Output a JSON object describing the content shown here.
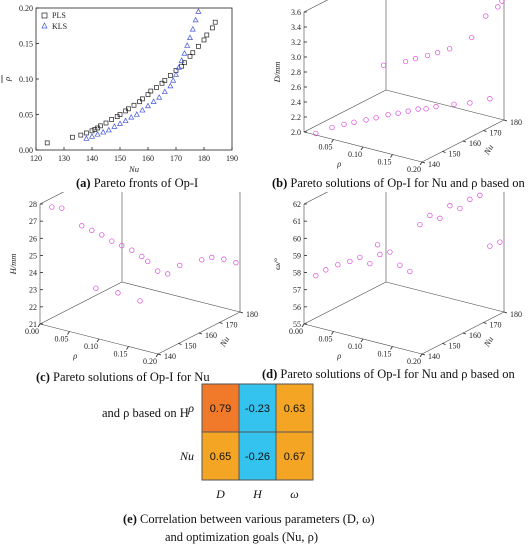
{
  "captions": {
    "a": {
      "tag": "(a)",
      "text": " Pareto fronts of Op-I"
    },
    "b": {
      "tag": "(b)",
      "text": " Pareto solutions of Op-I for Nu and ρ based on"
    },
    "c": {
      "tag": "(c)",
      "text": " Pareto solutions of Op-I for Nu"
    },
    "c2": "and ρ based on H",
    "d": {
      "tag": "(d)",
      "text": " Pareto solutions of Op-I for Nu and ρ based on"
    },
    "e": {
      "tag": "(e)",
      "text": " Correlation between various parameters (D, ω)"
    },
    "e2": "and optimization goals (Nu, ρ)"
  },
  "chart_data": [
    {
      "id": "a",
      "type": "scatter",
      "xlabel": "Nu",
      "ylabel": "ρ",
      "xlim": [
        120,
        190
      ],
      "ylim": [
        0,
        0.2
      ],
      "xticks": [
        "120",
        "130",
        "140",
        "150",
        "160",
        "170",
        "180",
        "190"
      ],
      "yticks": [
        "0.00",
        "0.05",
        "0.10",
        "0.15",
        "0.20"
      ],
      "legend": {
        "position": "top-left",
        "entries": [
          "PLS",
          "KLS"
        ]
      },
      "series": [
        {
          "name": "PLS",
          "color": "#222222",
          "marker": "square",
          "x": [
            124,
            133,
            136,
            138,
            140,
            141,
            142,
            143,
            145,
            147,
            149,
            150,
            152,
            153,
            155,
            157,
            158,
            160,
            161,
            163,
            165,
            166,
            168,
            170,
            172,
            173,
            175,
            176,
            178,
            180,
            181,
            183,
            184
          ],
          "y": [
            0.01,
            0.018,
            0.021,
            0.024,
            0.027,
            0.029,
            0.031,
            0.034,
            0.038,
            0.043,
            0.047,
            0.05,
            0.055,
            0.058,
            0.063,
            0.068,
            0.072,
            0.078,
            0.083,
            0.088,
            0.094,
            0.098,
            0.105,
            0.112,
            0.118,
            0.123,
            0.132,
            0.137,
            0.146,
            0.155,
            0.162,
            0.172,
            0.18
          ]
        },
        {
          "name": "KLS",
          "color": "#4455dd",
          "marker": "triangle",
          "x": [
            138,
            140,
            142,
            144,
            146,
            148,
            150,
            152,
            154,
            156,
            158,
            160,
            162,
            164,
            166,
            168,
            169,
            170,
            171,
            172,
            173,
            174,
            175,
            176,
            177,
            178
          ],
          "y": [
            0.016,
            0.019,
            0.022,
            0.025,
            0.028,
            0.033,
            0.037,
            0.041,
            0.046,
            0.05,
            0.056,
            0.062,
            0.068,
            0.074,
            0.082,
            0.09,
            0.098,
            0.106,
            0.116,
            0.126,
            0.136,
            0.147,
            0.158,
            0.17,
            0.183,
            0.195
          ]
        }
      ]
    },
    {
      "id": "b",
      "type": "scatter",
      "projection": "3d",
      "zlabel": "D/mm",
      "xlabel": "ρ",
      "ylabel": "Nu",
      "zlim": [
        2.0,
        3.6
      ],
      "xlim": [
        0,
        0.2
      ],
      "ylim": [
        140,
        180
      ],
      "zticks": [
        "2.0",
        "2.2",
        "2.4",
        "2.6",
        "2.8",
        "3.0",
        "3.2",
        "3.4",
        "3.6"
      ],
      "xticks": [
        "0.05",
        "0.10",
        "0.15",
        "0.20"
      ],
      "yticks": [
        "140",
        "150",
        "160",
        "170",
        "180"
      ],
      "color": "#dd44dd",
      "points": [
        {
          "rho": 0.02,
          "nu": 140,
          "z": 2.02
        },
        {
          "rho": 0.03,
          "nu": 145,
          "z": 2.05
        },
        {
          "rho": 0.04,
          "nu": 148,
          "z": 2.07
        },
        {
          "rho": 0.05,
          "nu": 150,
          "z": 2.09
        },
        {
          "rho": 0.06,
          "nu": 153,
          "z": 2.1
        },
        {
          "rho": 0.07,
          "nu": 155,
          "z": 2.12
        },
        {
          "rho": 0.08,
          "nu": 158,
          "z": 2.14
        },
        {
          "rho": 0.09,
          "nu": 160,
          "z": 2.15
        },
        {
          "rho": 0.1,
          "nu": 162,
          "z": 2.17
        },
        {
          "rho": 0.11,
          "nu": 164,
          "z": 2.19
        },
        {
          "rho": 0.12,
          "nu": 165,
          "z": 2.2
        },
        {
          "rho": 0.13,
          "nu": 167,
          "z": 2.22
        },
        {
          "rho": 0.15,
          "nu": 170,
          "z": 2.25
        },
        {
          "rho": 0.17,
          "nu": 172,
          "z": 2.28
        },
        {
          "rho": 0.19,
          "nu": 176,
          "z": 2.32
        },
        {
          "rho": 0.1,
          "nu": 150,
          "z": 2.95
        },
        {
          "rho": 0.12,
          "nu": 155,
          "z": 2.97
        },
        {
          "rho": 0.13,
          "nu": 157,
          "z": 3.0
        },
        {
          "rho": 0.14,
          "nu": 160,
          "z": 3.02
        },
        {
          "rho": 0.15,
          "nu": 162,
          "z": 3.05
        },
        {
          "rho": 0.16,
          "nu": 165,
          "z": 3.08
        },
        {
          "rho": 0.18,
          "nu": 170,
          "z": 3.2
        },
        {
          "rho": 0.19,
          "nu": 174,
          "z": 3.45
        },
        {
          "rho": 0.2,
          "nu": 177,
          "z": 3.55
        },
        {
          "rho": 0.2,
          "nu": 179,
          "z": 3.6
        }
      ]
    },
    {
      "id": "c",
      "type": "scatter",
      "projection": "3d",
      "zlabel": "H/mm",
      "xlabel": "ρ",
      "ylabel": "Nu",
      "zlim": [
        21,
        28
      ],
      "xlim": [
        0,
        0.2
      ],
      "ylim": [
        140,
        180
      ],
      "zticks": [
        "21",
        "22",
        "23",
        "24",
        "25",
        "26",
        "27",
        "28"
      ],
      "xticks": [
        "0.00",
        "0.05",
        "0.10",
        "0.15",
        "0.20"
      ],
      "yticks": [
        "140",
        "150",
        "160",
        "170",
        "180"
      ],
      "color": "#dd44dd",
      "points": [
        {
          "rho": 0.02,
          "nu": 140,
          "z": 28.0
        },
        {
          "rho": 0.03,
          "nu": 142,
          "z": 27.9
        },
        {
          "rho": 0.05,
          "nu": 146,
          "z": 26.8
        },
        {
          "rho": 0.06,
          "nu": 148,
          "z": 26.5
        },
        {
          "rho": 0.07,
          "nu": 150,
          "z": 26.2
        },
        {
          "rho": 0.08,
          "nu": 152,
          "z": 25.8
        },
        {
          "rho": 0.09,
          "nu": 154,
          "z": 25.5
        },
        {
          "rho": 0.1,
          "nu": 156,
          "z": 25.2
        },
        {
          "rho": 0.11,
          "nu": 158,
          "z": 24.8
        },
        {
          "rho": 0.13,
          "nu": 160,
          "z": 24.0
        },
        {
          "rho": 0.15,
          "nu": 165,
          "z": 24.2
        },
        {
          "rho": 0.17,
          "nu": 170,
          "z": 24.4
        },
        {
          "rho": 0.18,
          "nu": 172,
          "z": 24.5
        },
        {
          "rho": 0.19,
          "nu": 175,
          "z": 24.3
        },
        {
          "rho": 0.2,
          "nu": 178,
          "z": 24.0
        },
        {
          "rho": 0.06,
          "nu": 150,
          "z": 23.0
        },
        {
          "rho": 0.08,
          "nu": 155,
          "z": 22.6
        },
        {
          "rho": 0.1,
          "nu": 160,
          "z": 22.0
        },
        {
          "rho": 0.12,
          "nu": 158,
          "z": 24.6
        },
        {
          "rho": 0.14,
          "nu": 162,
          "z": 23.8
        }
      ]
    },
    {
      "id": "d",
      "type": "scatter",
      "projection": "3d",
      "zlabel": "ω/°",
      "xlabel": "ρ",
      "ylabel": "Nu",
      "zlim": [
        55,
        62
      ],
      "xlim": [
        0,
        0.2
      ],
      "ylim": [
        140,
        180
      ],
      "zticks": [
        "55",
        "56",
        "57",
        "58",
        "59",
        "60",
        "61",
        "62"
      ],
      "xticks": [
        "0.00",
        "0.05",
        "0.10",
        "0.15",
        "0.20"
      ],
      "yticks": [
        "140",
        "150",
        "160",
        "170",
        "180"
      ],
      "color": "#dd44dd",
      "points": [
        {
          "rho": 0.02,
          "nu": 140,
          "z": 58.0
        },
        {
          "rho": 0.03,
          "nu": 142,
          "z": 58.3
        },
        {
          "rho": 0.04,
          "nu": 145,
          "z": 58.5
        },
        {
          "rho": 0.05,
          "nu": 148,
          "z": 58.6
        },
        {
          "rho": 0.06,
          "nu": 150,
          "z": 58.8
        },
        {
          "rho": 0.07,
          "nu": 152,
          "z": 58.4
        },
        {
          "rho": 0.08,
          "nu": 154,
          "z": 58.9
        },
        {
          "rho": 0.09,
          "nu": 156,
          "z": 59.0
        },
        {
          "rho": 0.1,
          "nu": 158,
          "z": 58.2
        },
        {
          "rho": 0.11,
          "nu": 160,
          "z": 57.8
        },
        {
          "rho": 0.12,
          "nu": 162,
          "z": 60.5
        },
        {
          "rho": 0.13,
          "nu": 164,
          "z": 61.0
        },
        {
          "rho": 0.15,
          "nu": 168,
          "z": 61.5
        },
        {
          "rho": 0.17,
          "nu": 172,
          "z": 61.8
        },
        {
          "rho": 0.18,
          "nu": 174,
          "z": 62.0
        },
        {
          "rho": 0.19,
          "nu": 176,
          "z": 59.0
        },
        {
          "rho": 0.2,
          "nu": 178,
          "z": 59.2
        },
        {
          "rho": 0.09,
          "nu": 150,
          "z": 59.8
        },
        {
          "rho": 0.14,
          "nu": 166,
          "z": 60.8
        },
        {
          "rho": 0.16,
          "nu": 170,
          "z": 61.3
        }
      ]
    },
    {
      "id": "e",
      "type": "heatmap",
      "rows": [
        "ρ",
        "Nu"
      ],
      "cols": [
        "D",
        "H",
        "ω"
      ],
      "values": [
        [
          0.79,
          -0.23,
          0.63
        ],
        [
          0.65,
          -0.26,
          0.67
        ]
      ],
      "labels": [
        [
          "0.79",
          "-0.23",
          "0.63"
        ],
        [
          "0.65",
          "-0.26",
          "0.67"
        ]
      ],
      "colors": [
        [
          "#f07a2a",
          "#33c3ee",
          "#f5a524"
        ],
        [
          "#f5a524",
          "#33c3ee",
          "#f5a524"
        ]
      ]
    }
  ]
}
